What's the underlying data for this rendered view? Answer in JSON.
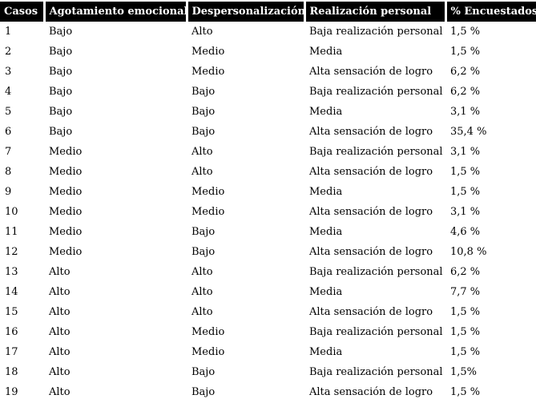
{
  "colors": {
    "header_bg": "#000000",
    "header_text": "#ffffff",
    "body_bg": "#ffffff",
    "body_text": "#000000"
  },
  "table": {
    "headers": [
      "Casos",
      "Agotamiento emocional",
      "Despersonalización",
      "Realización personal",
      "% Encuestados"
    ],
    "rows": [
      [
        "1",
        "Bajo",
        "Alto",
        "Baja realización personal",
        "1,5 %"
      ],
      [
        "2",
        "Bajo",
        "Medio",
        "Media",
        "1,5 %"
      ],
      [
        "3",
        "Bajo",
        "Medio",
        "Alta sensación de logro",
        "6,2 %"
      ],
      [
        "4",
        "Bajo",
        "Bajo",
        "Baja realización personal",
        "6,2 %"
      ],
      [
        "5",
        "Bajo",
        "Bajo",
        "Media",
        "3,1 %"
      ],
      [
        "6",
        "Bajo",
        "Bajo",
        "Alta sensación de logro",
        "35,4 %"
      ],
      [
        "7",
        "Medio",
        "Alto",
        "Baja realización personal",
        "3,1 %"
      ],
      [
        "8",
        "Medio",
        "Alto",
        "Alta sensación de logro",
        "1,5 %"
      ],
      [
        "9",
        "Medio",
        "Medio",
        "Media",
        "1,5 %"
      ],
      [
        "10",
        "Medio",
        "Medio",
        "Alta sensación de logro",
        "3,1 %"
      ],
      [
        "11",
        "Medio",
        "Bajo",
        "Media",
        "4,6 %"
      ],
      [
        "12",
        "Medio",
        "Bajo",
        "Alta sensación de logro",
        "10,8 %"
      ],
      [
        "13",
        "Alto",
        "Alto",
        "Baja realización personal",
        "6,2 %"
      ],
      [
        "14",
        "Alto",
        "Alto",
        "Media",
        "7,7 %"
      ],
      [
        "15",
        "Alto",
        "Alto",
        "Alta sensación de logro",
        "1,5 %"
      ],
      [
        "16",
        "Alto",
        "Medio",
        "Baja realización personal",
        "1,5 %"
      ],
      [
        "17",
        "Alto",
        "Medio",
        "Media",
        "1,5 %"
      ],
      [
        "18",
        "Alto",
        "Bajo",
        "Baja realización personal",
        "1,5%"
      ],
      [
        "19",
        "Alto",
        "Bajo",
        "Alta sensación de logro",
        "1,5 %"
      ]
    ]
  }
}
